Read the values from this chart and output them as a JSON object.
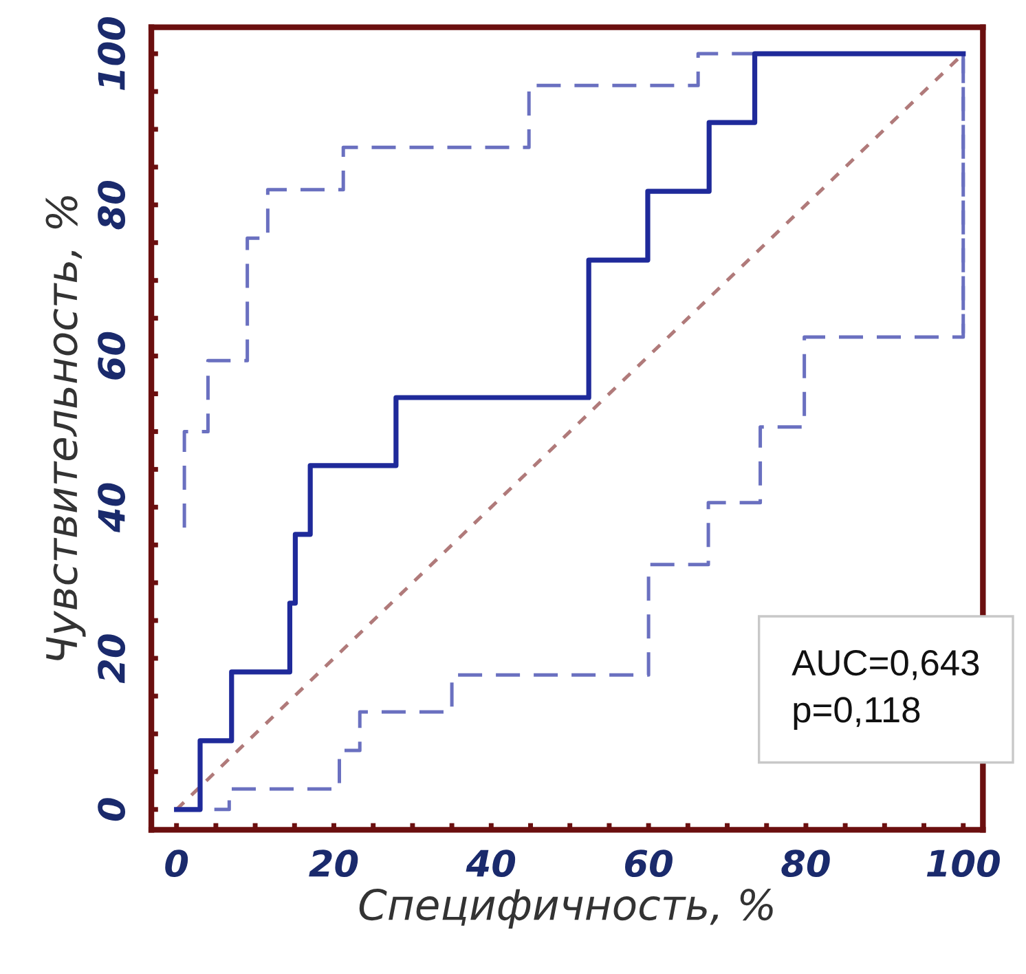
{
  "chart_data": {
    "type": "line",
    "xlabel": "Специфичность, %",
    "ylabel": "Чувствительность, %",
    "xlim": [
      -3.2,
      102.5
    ],
    "ylim": [
      -2.7,
      103.5
    ],
    "xticks": [
      0,
      {
        "value": 5,
        "label": null
      },
      {
        "value": 10,
        "label": null
      },
      {
        "value": 15,
        "label": null
      },
      20,
      {
        "value": 25,
        "label": null
      },
      {
        "value": 30,
        "label": null
      },
      {
        "value": 35,
        "label": null
      },
      40,
      {
        "value": 45,
        "label": null
      },
      {
        "value": 50,
        "label": null
      },
      {
        "value": 55,
        "label": null
      },
      60,
      {
        "value": 65,
        "label": null
      },
      {
        "value": 70,
        "label": null
      },
      {
        "value": 75,
        "label": null
      },
      80,
      {
        "value": 85,
        "label": null
      },
      {
        "value": 90,
        "label": null
      },
      {
        "value": 95,
        "label": null
      },
      100
    ],
    "yticks": [
      0,
      {
        "value": 5,
        "label": null
      },
      {
        "value": 10,
        "label": null
      },
      {
        "value": 15,
        "label": null
      },
      20,
      {
        "value": 25,
        "label": null
      },
      {
        "value": 30,
        "label": null
      },
      {
        "value": 35,
        "label": null
      },
      40,
      {
        "value": 45,
        "label": null
      },
      {
        "value": 50,
        "label": null
      },
      {
        "value": 55,
        "label": null
      },
      60,
      {
        "value": 65,
        "label": null
      },
      {
        "value": 70,
        "label": null
      },
      {
        "value": 75,
        "label": null
      },
      80,
      {
        "value": 85,
        "label": null
      },
      {
        "value": 90,
        "label": null
      },
      {
        "value": 95,
        "label": null
      },
      100
    ],
    "grid": false,
    "marker": "none",
    "series": [
      {
        "color": "#b07a7a",
        "line_style": "dotted",
        "x": [
          0,
          100
        ],
        "values": [
          0,
          100
        ]
      },
      {
        "color": "#6a70c0",
        "line_style": "dashed",
        "x": [
          1,
          1,
          4,
          4,
          9,
          9,
          11.6,
          11.6,
          21.2,
          21.2,
          44.8,
          44.8,
          66.3,
          66.3,
          100,
          100
        ],
        "values": [
          37.3,
          50,
          50,
          59.4,
          59.4,
          75.6,
          75.6,
          82,
          82,
          87.6,
          87.6,
          95.8,
          95.8,
          100,
          100,
          63
        ]
      },
      {
        "color": "#6a70c0",
        "line_style": "dashed",
        "x": [
          0,
          6.7,
          6.7,
          20.7,
          20.7,
          23.3,
          23.3,
          35,
          35,
          60,
          60,
          67.6,
          67.6,
          74.2,
          74.2,
          79.8,
          79.8,
          100,
          100
        ],
        "values": [
          0,
          0,
          2.7,
          2.7,
          7.8,
          7.8,
          12.9,
          12.9,
          17.8,
          17.8,
          32.4,
          32.4,
          40.6,
          40.6,
          50.6,
          50.6,
          62.5,
          62.5,
          100
        ]
      },
      {
        "color": "#1f2a9a",
        "line_style": "solid",
        "x": [
          0,
          3,
          3,
          7,
          7,
          14.4,
          14.4,
          15.1,
          15.1,
          17,
          17,
          27.9,
          27.9,
          52.4,
          52.4,
          59.9,
          59.9,
          67.7,
          67.7,
          73.5,
          73.5,
          100
        ],
        "values": [
          0,
          0,
          9.1,
          9.1,
          18.2,
          18.2,
          27.3,
          27.3,
          36.4,
          36.4,
          45.5,
          45.5,
          54.5,
          54.5,
          72.7,
          72.7,
          81.8,
          81.8,
          90.9,
          90.9,
          100,
          100
        ]
      }
    ],
    "annotations": [
      "AUC=0,643",
      "p=0,118"
    ]
  }
}
